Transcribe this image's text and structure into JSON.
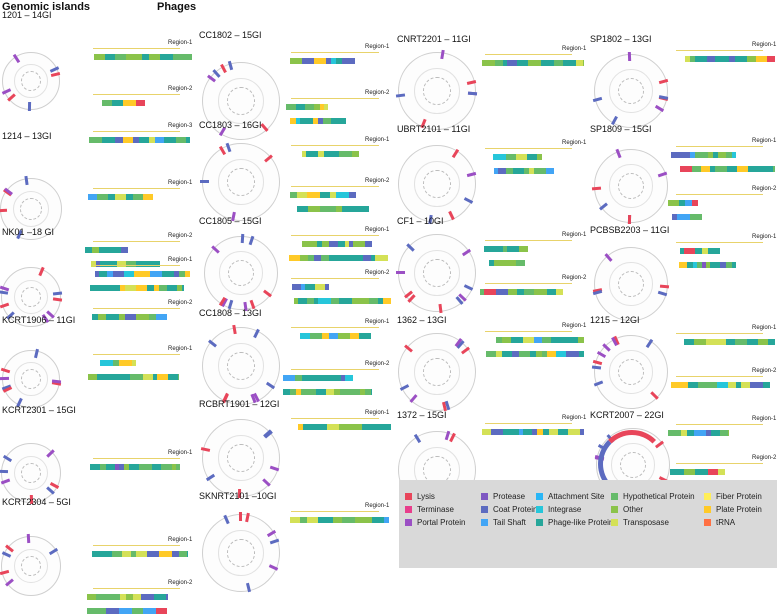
{
  "headers": {
    "left": "Genomic islands",
    "right": "Phages"
  },
  "colors": {
    "Lysis": "#e8455a",
    "Terminase": "#e83e8c",
    "Portal Protein": "#9b4fc4",
    "Protease": "#7e57c2",
    "Coat Protein": "#5c6bc0",
    "Tail Shaft": "#42a5f5",
    "Attachment Site": "#29b6f6",
    "Integrase": "#26c6da",
    "Phage-like Protein": "#26a69a",
    "Hypothetical Protein": "#66bb6a",
    "Other": "#8bc34a",
    "Transposase": "#d4e157",
    "Fiber Protein": "#ffee58",
    "Plate Protein": "#ffca28",
    "tRNA": "#ff7043"
  },
  "legend": [
    [
      "Lysis",
      "Protease",
      "Attachment Site",
      "Hypothetical Protein",
      "Fiber Protein"
    ],
    [
      "Terminase",
      "Coat Protein",
      "Integrase",
      "Other",
      "Plate Protein"
    ],
    [
      "Portal Protein",
      "Tail Shaft",
      "Phage-like Protein",
      "Transposase",
      "tRNA"
    ]
  ],
  "panels": [
    {
      "title": "1201 – 14GI",
      "regions": [
        "Region-1",
        "Region-2",
        "Region-3"
      ]
    },
    {
      "title": "1214 – 13GI",
      "regions": [
        "Region-1",
        "Region-2"
      ]
    },
    {
      "title": "NK01 –18 GI",
      "regions": [
        "Region-1",
        "Region-2"
      ]
    },
    {
      "title": "KCRT1906 – 11GI",
      "regions": [
        "Region-1"
      ]
    },
    {
      "title": "KCRT2301 – 15GI",
      "regions": [
        "Region-1"
      ]
    },
    {
      "title": "KCRT2304 – 5GI",
      "regions": [
        "Region-1",
        "Region-2"
      ]
    },
    {
      "title": "CC1802 – 15GI",
      "regions": [
        "Region-1",
        "Region-2"
      ]
    },
    {
      "title": "CC1803 – 16GI",
      "regions": [
        "Region-1",
        "Region-2"
      ]
    },
    {
      "title": "CC1805 – 15GI",
      "regions": [
        "Region-1",
        "Region-2"
      ]
    },
    {
      "title": "CC1808 – 13GI",
      "regions": [
        "Region-1",
        "Region-2"
      ]
    },
    {
      "title": "RCBRT1901 – 12GI",
      "regions": [
        "Region-1"
      ]
    },
    {
      "title": "SKNRT2101 –10GI",
      "regions": [
        "Region-1"
      ]
    },
    {
      "title": "CNRT2201 – 11GI",
      "regions": [
        "Region-1"
      ]
    },
    {
      "title": "UBRT2101 – 11GI",
      "regions": [
        "Region-1"
      ]
    },
    {
      "title": "CF1 – 10GI",
      "regions": [
        "Region-1",
        "Region-2"
      ]
    },
    {
      "title": "1362 – 13GI",
      "regions": [
        "Region-1"
      ]
    },
    {
      "title": "1372 – 15GI",
      "regions": [
        "Region-1"
      ]
    },
    {
      "title": "SP1802 – 13GI",
      "regions": [
        "Region-1"
      ]
    },
    {
      "title": "SP1809 – 15GI",
      "regions": [
        "Region-1",
        "Region-2"
      ]
    },
    {
      "title": "PCBSB2203 – 11GI",
      "regions": [
        "Region-1"
      ]
    },
    {
      "title": "1215 – 12GI",
      "regions": [
        "Region-1",
        "Region-2"
      ]
    },
    {
      "title": "KCRT2007 – 22GI",
      "regions": [
        "Region-1",
        "Region-2"
      ]
    }
  ]
}
